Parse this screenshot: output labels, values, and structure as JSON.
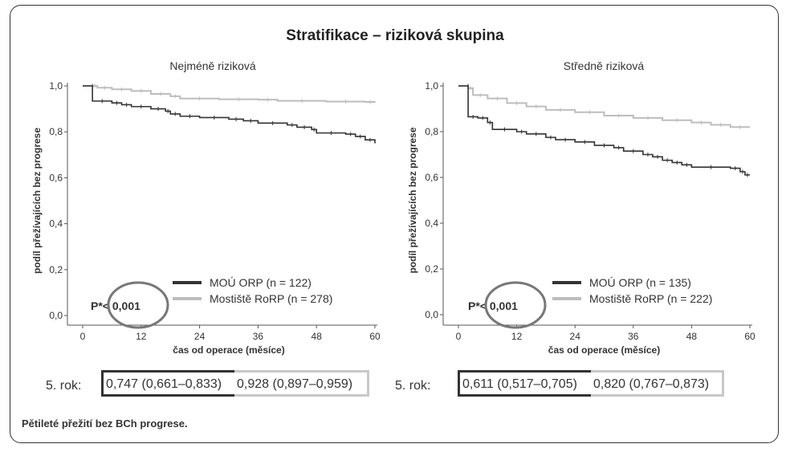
{
  "title": "Stratifikace – riziková skupina",
  "caption": "Pětileté přežití bez BCh progrese.",
  "five_year_label": "5. rok:",
  "colors": {
    "moú": "#333333",
    "mostiste": "#bdbdbd",
    "circle": "#777777"
  },
  "chart_data": [
    {
      "type": "line",
      "title": "Nejméně riziková",
      "xlabel": "čas od operace (měsíce)",
      "ylabel": "podíl přežívajících bez progrese",
      "xlim": [
        0,
        60
      ],
      "ylim": [
        0,
        1
      ],
      "x_ticks": [
        "0",
        "12",
        "24",
        "36",
        "48",
        "60"
      ],
      "y_ticks": [
        "0,0",
        "0,2",
        "0,4",
        "0,6",
        "0,8",
        "1,0"
      ],
      "p_value": "P*< 0,001",
      "legend_position": "bottom-center",
      "series": [
        {
          "name": "MOÚ ORP (n = 122)",
          "step": [
            [
              0,
              1.0
            ],
            [
              2,
              1.0
            ],
            [
              2,
              0.934
            ],
            [
              6,
              0.926
            ],
            [
              8,
              0.918
            ],
            [
              10,
              0.91
            ],
            [
              14,
              0.9
            ],
            [
              17,
              0.89
            ],
            [
              18,
              0.878
            ],
            [
              20,
              0.868
            ],
            [
              24,
              0.862
            ],
            [
              30,
              0.855
            ],
            [
              33,
              0.848
            ],
            [
              36,
              0.838
            ],
            [
              42,
              0.83
            ],
            [
              44,
              0.82
            ],
            [
              47,
              0.81
            ],
            [
              48,
              0.795
            ],
            [
              54,
              0.79
            ],
            [
              56,
              0.78
            ],
            [
              58,
              0.765
            ],
            [
              60,
              0.75
            ]
          ]
        },
        {
          "name": "Mostiště RoRP (n = 278)",
          "step": [
            [
              0,
              1.0
            ],
            [
              2,
              1.0
            ],
            [
              3,
              0.992
            ],
            [
              6,
              0.985
            ],
            [
              10,
              0.978
            ],
            [
              14,
              0.965
            ],
            [
              18,
              0.955
            ],
            [
              20,
              0.945
            ],
            [
              28,
              0.942
            ],
            [
              36,
              0.94
            ],
            [
              40,
              0.935
            ],
            [
              50,
              0.932
            ],
            [
              58,
              0.93
            ],
            [
              60,
              0.928
            ]
          ]
        }
      ],
      "five_year": {
        "moú": "0,747 (0,661–0,833)",
        "mostiste": "0,928 (0,897–0,959)"
      }
    },
    {
      "type": "line",
      "title": "Středně riziková",
      "xlabel": "čas od operace (měsíce)",
      "ylabel": "podíl přežívajících bez progrese",
      "xlim": [
        0,
        60
      ],
      "ylim": [
        0,
        1
      ],
      "x_ticks": [
        "0",
        "12",
        "24",
        "36",
        "48",
        "60"
      ],
      "y_ticks": [
        "0,0",
        "0,2",
        "0,4",
        "0,6",
        "0,8",
        "1,0"
      ],
      "p_value": "P*< 0,001",
      "legend_position": "bottom-center",
      "series": [
        {
          "name": "MOÚ ORP (n = 135)",
          "step": [
            [
              0,
              1.0
            ],
            [
              2,
              1.0
            ],
            [
              2,
              0.865
            ],
            [
              4,
              0.86
            ],
            [
              6,
              0.84
            ],
            [
              7,
              0.81
            ],
            [
              12,
              0.8
            ],
            [
              14,
              0.79
            ],
            [
              18,
              0.775
            ],
            [
              20,
              0.765
            ],
            [
              24,
              0.755
            ],
            [
              28,
              0.74
            ],
            [
              32,
              0.73
            ],
            [
              34,
              0.715
            ],
            [
              38,
              0.7
            ],
            [
              40,
              0.69
            ],
            [
              42,
              0.675
            ],
            [
              44,
              0.665
            ],
            [
              46,
              0.655
            ],
            [
              48,
              0.645
            ],
            [
              56,
              0.64
            ],
            [
              58,
              0.625
            ],
            [
              59,
              0.611
            ],
            [
              60,
              0.611
            ]
          ]
        },
        {
          "name": "Mostiště RoRP (n = 222)",
          "step": [
            [
              0,
              1.0
            ],
            [
              2,
              0.99
            ],
            [
              3,
              0.96
            ],
            [
              6,
              0.945
            ],
            [
              10,
              0.925
            ],
            [
              14,
              0.91
            ],
            [
              18,
              0.895
            ],
            [
              24,
              0.885
            ],
            [
              30,
              0.87
            ],
            [
              36,
              0.86
            ],
            [
              42,
              0.85
            ],
            [
              48,
              0.84
            ],
            [
              52,
              0.83
            ],
            [
              56,
              0.82
            ],
            [
              60,
              0.82
            ]
          ]
        }
      ],
      "five_year": {
        "moú": "0,611 (0,517–0,705)",
        "mostiste": "0,820 (0,767–0,873)"
      }
    }
  ]
}
